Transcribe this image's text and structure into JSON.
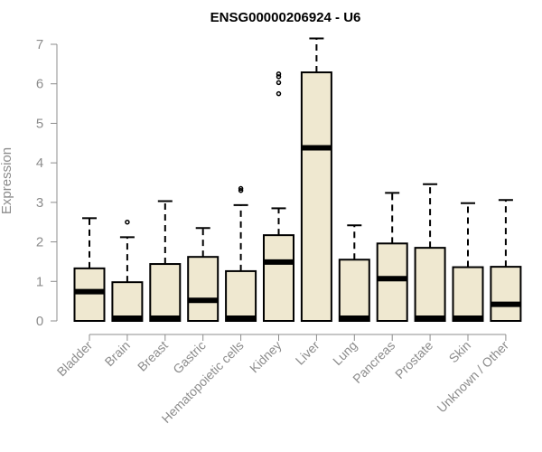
{
  "chart_data": {
    "type": "boxplot",
    "title": "ENSG00000206924 - U6",
    "ylabel": "Expression",
    "xlabel": "",
    "ylim": [
      0,
      7
    ],
    "yticks": [
      0,
      1,
      2,
      3,
      4,
      5,
      6,
      7
    ],
    "categories": [
      "Bladder",
      "Brain",
      "Breast",
      "Gastric",
      "Hematopoietic cells",
      "Kidney",
      "Liver",
      "Lung",
      "Pancreas",
      "Prostate",
      "Skin",
      "Unknown / Other"
    ],
    "boxes": [
      {
        "min": 0,
        "q1": 0,
        "median": 0.74,
        "q3": 1.33,
        "max": 2.6,
        "outliers": []
      },
      {
        "min": 0,
        "q1": 0,
        "median": 0.02,
        "q3": 0.98,
        "max": 2.12,
        "outliers": [
          2.5
        ]
      },
      {
        "min": 0,
        "q1": 0,
        "median": 0.02,
        "q3": 1.44,
        "max": 3.03,
        "outliers": []
      },
      {
        "min": 0,
        "q1": 0,
        "median": 0.52,
        "q3": 1.62,
        "max": 2.35,
        "outliers": []
      },
      {
        "min": 0,
        "q1": 0,
        "median": 0.02,
        "q3": 1.26,
        "max": 2.93,
        "outliers": [
          3.3,
          3.35
        ]
      },
      {
        "min": 0,
        "q1": 0,
        "median": 1.49,
        "q3": 2.17,
        "max": 2.85,
        "outliers": [
          5.75,
          6.03,
          6.18,
          6.25
        ]
      },
      {
        "min": 0,
        "q1": 0,
        "median": 4.38,
        "q3": 6.29,
        "max": 7.15,
        "outliers": []
      },
      {
        "min": 0,
        "q1": 0,
        "median": 0.02,
        "q3": 1.55,
        "max": 2.42,
        "outliers": []
      },
      {
        "min": 0,
        "q1": 0,
        "median": 1.07,
        "q3": 1.96,
        "max": 3.24,
        "outliers": []
      },
      {
        "min": 0,
        "q1": 0,
        "median": 0.02,
        "q3": 1.85,
        "max": 3.46,
        "outliers": []
      },
      {
        "min": 0,
        "q1": 0,
        "median": 0.02,
        "q3": 1.36,
        "max": 2.98,
        "outliers": []
      },
      {
        "min": 0,
        "q1": 0,
        "median": 0.42,
        "q3": 1.37,
        "max": 3.06,
        "outliers": []
      }
    ],
    "box_fill": "#efe8d0",
    "box_stroke": "#000000",
    "axis_color": "#8c8c8c",
    "grid": false,
    "legend": "none"
  }
}
